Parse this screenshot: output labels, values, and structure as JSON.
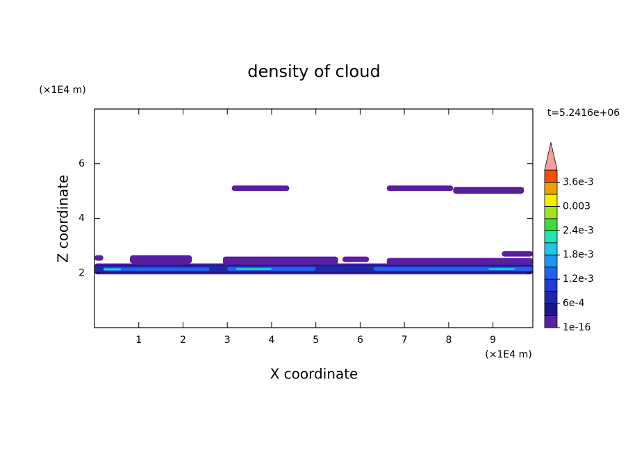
{
  "chart_data": {
    "type": "contour",
    "title": "density of cloud",
    "x_label": "X coordinate",
    "y_label": "Z coordinate",
    "x_unit": "(×1E4 m)",
    "y_unit": "(×1E4 m)",
    "annotation": "t=5.2416e+06",
    "xlim": [
      0,
      9.9
    ],
    "ylim": [
      0,
      8
    ],
    "xticks": [
      1,
      2,
      3,
      4,
      5,
      6,
      7,
      8,
      9
    ],
    "yticks": [
      2,
      4,
      6
    ],
    "levels": [
      1e-16,
      0.0003,
      0.0006,
      0.0009,
      0.0012,
      0.0015,
      0.0018,
      0.0021,
      0.0024,
      0.0027,
      0.003,
      0.0033,
      0.0036,
      0.0039
    ],
    "colors": [
      "#5a1ea0",
      "#1e148c",
      "#1e28aa",
      "#1e3cd2",
      "#1e64f0",
      "#1e96f0",
      "#1ec8e6",
      "#1ee6b4",
      "#3cdc3c",
      "#a0e61e",
      "#f0f000",
      "#f0a000",
      "#f05000"
    ],
    "extend_color": "#f4a0a0",
    "colorbar_ticks": [
      1e-16,
      {
        "value": 0.0006,
        "label": "6e-4"
      },
      {
        "value": 0.0012,
        "label": "1.2e-3"
      },
      {
        "value": 0.0018,
        "label": "1.8e-3"
      },
      {
        "value": 0.0024,
        "label": "2.4e-3"
      },
      0.003,
      {
        "value": 0.0036,
        "label": "3.6e-3"
      }
    ],
    "regions": [
      {
        "value": 1e-16,
        "x": [
          3.1,
          4.4
        ],
        "z": [
          5.0,
          5.2
        ]
      },
      {
        "value": 1e-16,
        "x": [
          6.6,
          8.1
        ],
        "z": [
          5.0,
          5.2
        ]
      },
      {
        "value": 1e-16,
        "x": [
          8.1,
          9.7
        ],
        "z": [
          4.9,
          5.15
        ]
      },
      {
        "value": 1e-16,
        "x": [
          0,
          0.2
        ],
        "z": [
          2.45,
          2.65
        ]
      },
      {
        "value": 1e-16,
        "x": [
          0.8,
          2.2
        ],
        "z": [
          2.35,
          2.65
        ]
      },
      {
        "value": 1e-16,
        "x": [
          2.9,
          5.5
        ],
        "z": [
          2.3,
          2.6
        ]
      },
      {
        "value": 1e-16,
        "x": [
          5.6,
          6.2
        ],
        "z": [
          2.4,
          2.6
        ]
      },
      {
        "value": 1e-16,
        "x": [
          6.6,
          9.9
        ],
        "z": [
          2.3,
          2.55
        ]
      },
      {
        "value": 1e-16,
        "x": [
          9.2,
          9.9
        ],
        "z": [
          2.6,
          2.8
        ]
      },
      {
        "value": 1e-16,
        "x": [
          0,
          9.9
        ],
        "z": [
          1.95,
          2.35
        ]
      },
      {
        "value": 0.0003,
        "x": [
          0,
          9.9
        ],
        "z": [
          2.0,
          2.3
        ]
      },
      {
        "value": 0.0006,
        "x": [
          0,
          9.9
        ],
        "z": [
          2.04,
          2.26
        ]
      },
      {
        "value": 0.0012,
        "x": [
          0.2,
          2.6
        ],
        "z": [
          2.08,
          2.2
        ]
      },
      {
        "value": 0.0012,
        "x": [
          3.0,
          5.0
        ],
        "z": [
          2.08,
          2.22
        ]
      },
      {
        "value": 0.0012,
        "x": [
          6.3,
          9.9
        ],
        "z": [
          2.08,
          2.22
        ]
      },
      {
        "value": 0.0018,
        "x": [
          0.2,
          0.6
        ],
        "z": [
          2.1,
          2.17
        ]
      },
      {
        "value": 0.0018,
        "x": [
          3.2,
          4.0
        ],
        "z": [
          2.11,
          2.18
        ]
      },
      {
        "value": 0.0018,
        "x": [
          8.9,
          9.5
        ],
        "z": [
          2.11,
          2.18
        ]
      },
      {
        "value": 0.0024,
        "x": [
          3.4,
          3.8
        ],
        "z": [
          2.12,
          2.16
        ]
      }
    ]
  }
}
